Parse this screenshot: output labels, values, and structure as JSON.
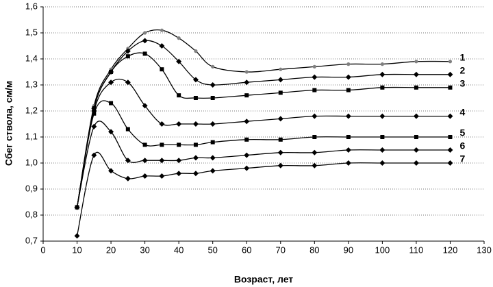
{
  "chart_data": {
    "type": "line",
    "x_label": "Возраст,  лет",
    "y_label": "Сбег ствола,  см/м",
    "x": [
      10,
      15,
      20,
      25,
      30,
      35,
      40,
      45,
      50,
      60,
      70,
      80,
      90,
      100,
      110,
      120
    ],
    "series": [
      {
        "name": "1",
        "color": "#000000",
        "marker": "circle",
        "marker_color": "#808080",
        "values": [
          0.83,
          1.22,
          1.36,
          1.44,
          1.5,
          1.51,
          1.48,
          1.43,
          1.37,
          1.35,
          1.36,
          1.37,
          1.38,
          1.38,
          1.39,
          1.39
        ]
      },
      {
        "name": "2",
        "color": "#000000",
        "marker": "diamond",
        "marker_color": "#000000",
        "values": [
          0.83,
          1.21,
          1.35,
          1.43,
          1.47,
          1.45,
          1.39,
          1.32,
          1.3,
          1.31,
          1.32,
          1.33,
          1.33,
          1.34,
          1.34,
          1.34
        ]
      },
      {
        "name": "3",
        "color": "#000000",
        "marker": "square",
        "marker_color": "#000000",
        "values": [
          0.83,
          1.21,
          1.35,
          1.41,
          1.42,
          1.36,
          1.26,
          1.25,
          1.25,
          1.26,
          1.27,
          1.28,
          1.28,
          1.29,
          1.29,
          1.29
        ]
      },
      {
        "name": "4",
        "color": "#000000",
        "marker": "diamond",
        "marker_color": "#000000",
        "values": [
          0.83,
          1.2,
          1.31,
          1.31,
          1.22,
          1.15,
          1.15,
          1.15,
          1.15,
          1.16,
          1.17,
          1.18,
          1.18,
          1.18,
          1.18,
          1.18
        ]
      },
      {
        "name": "5",
        "color": "#000000",
        "marker": "square",
        "marker_color": "#000000",
        "values": [
          0.83,
          1.19,
          1.23,
          1.13,
          1.07,
          1.07,
          1.07,
          1.07,
          1.08,
          1.09,
          1.09,
          1.1,
          1.1,
          1.1,
          1.1,
          1.1
        ]
      },
      {
        "name": "6",
        "color": "#000000",
        "marker": "diamond",
        "marker_color": "#000000",
        "values": [
          0.83,
          1.14,
          1.12,
          1.01,
          1.01,
          1.01,
          1.01,
          1.02,
          1.02,
          1.03,
          1.04,
          1.04,
          1.05,
          1.05,
          1.05,
          1.05
        ]
      },
      {
        "name": "7",
        "color": "#000000",
        "marker": "diamond",
        "marker_color": "#000000",
        "values": [
          0.72,
          1.03,
          0.97,
          0.94,
          0.95,
          0.95,
          0.96,
          0.96,
          0.97,
          0.98,
          0.99,
          0.99,
          1.0,
          1.0,
          1.0,
          1.0
        ]
      }
    ],
    "xlim": [
      0,
      130
    ],
    "xticks": [
      0,
      10,
      20,
      30,
      40,
      50,
      60,
      70,
      80,
      90,
      100,
      110,
      120,
      130
    ],
    "ylim": [
      0.7,
      1.6
    ],
    "yticks": [
      {
        "value": 0.7,
        "label": "0,7"
      },
      {
        "value": 0.8,
        "label": "0,8"
      },
      {
        "value": 0.9,
        "label": "0,9"
      },
      {
        "value": 1.0,
        "label": "1,0"
      },
      {
        "value": 1.1,
        "label": "1,1"
      },
      {
        "value": 1.2,
        "label": "1,2"
      },
      {
        "value": 1.3,
        "label": "1,3"
      },
      {
        "value": 1.4,
        "label": "1,4"
      },
      {
        "value": 1.5,
        "label": "1,5"
      },
      {
        "value": 1.6,
        "label": "1,6"
      }
    ],
    "grid": true
  }
}
